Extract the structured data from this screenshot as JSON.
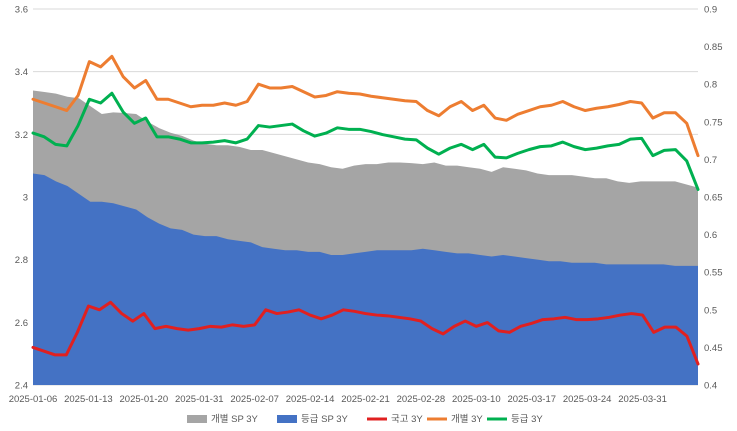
{
  "chart_data": {
    "type": "area",
    "y_left": {
      "min": 2.4,
      "max": 3.6,
      "ticks": [
        "2.4",
        "2.6",
        "2.8",
        "3",
        "3.2",
        "3.4",
        "3.6"
      ]
    },
    "y_right": {
      "min": 0.4,
      "max": 0.9,
      "ticks": [
        "0.4",
        "0.45",
        "0.5",
        "0.55",
        "0.6",
        "0.65",
        "0.7",
        "0.75",
        "0.8",
        "0.85",
        "0.9"
      ]
    },
    "x_tick_labels": [
      "2025-01-06",
      "2025-01-13",
      "2025-01-20",
      "2025-01-31",
      "2025-02-07",
      "2025-02-14",
      "2025-02-21",
      "2025-02-28",
      "2025-03-10",
      "2025-03-17",
      "2025-03-24",
      "2025-03-31"
    ],
    "x_tick_positions": [
      0,
      5,
      10,
      15,
      20,
      25,
      30,
      35,
      40,
      45,
      50,
      55
    ],
    "grid": true,
    "legend_position": "bottom",
    "series": [
      {
        "name": "개별 SP 3Y",
        "type": "area",
        "axis": "left",
        "color": "#a5a5a5",
        "values": [
          3.34,
          3.335,
          3.33,
          3.32,
          3.315,
          3.29,
          3.265,
          3.27,
          3.268,
          3.265,
          3.24,
          3.22,
          3.205,
          3.195,
          3.18,
          3.17,
          3.165,
          3.165,
          3.16,
          3.15,
          3.15,
          3.14,
          3.13,
          3.12,
          3.11,
          3.105,
          3.095,
          3.09,
          3.1,
          3.105,
          3.105,
          3.11,
          3.11,
          3.108,
          3.105,
          3.11,
          3.1,
          3.1,
          3.095,
          3.09,
          3.08,
          3.095,
          3.09,
          3.085,
          3.075,
          3.07,
          3.07,
          3.07,
          3.065,
          3.06,
          3.06,
          3.05,
          3.045,
          3.05,
          3.05,
          3.05,
          3.05,
          3.04,
          3.03
        ]
      },
      {
        "name": "등급 SP 3Y",
        "type": "area",
        "axis": "left",
        "color": "#4472c4",
        "values": [
          3.075,
          3.07,
          3.05,
          3.035,
          3.01,
          2.985,
          2.985,
          2.98,
          2.97,
          2.96,
          2.935,
          2.915,
          2.9,
          2.895,
          2.88,
          2.875,
          2.875,
          2.865,
          2.86,
          2.855,
          2.84,
          2.835,
          2.83,
          2.83,
          2.825,
          2.825,
          2.815,
          2.815,
          2.82,
          2.825,
          2.83,
          2.83,
          2.83,
          2.83,
          2.835,
          2.83,
          2.825,
          2.82,
          2.82,
          2.815,
          2.81,
          2.815,
          2.81,
          2.805,
          2.8,
          2.795,
          2.795,
          2.79,
          2.79,
          2.79,
          2.785,
          2.785,
          2.785,
          2.785,
          2.785,
          2.785,
          2.78,
          2.78,
          2.78
        ]
      },
      {
        "name": "국고 3Y",
        "type": "line",
        "axis": "right",
        "color": "#e02020",
        "values": [
          0.45,
          0.445,
          0.44,
          0.44,
          0.47,
          0.505,
          0.5,
          0.51,
          0.495,
          0.485,
          0.495,
          0.475,
          0.478,
          0.475,
          0.473,
          0.475,
          0.478,
          0.477,
          0.48,
          0.478,
          0.48,
          0.5,
          0.495,
          0.497,
          0.5,
          0.493,
          0.488,
          0.493,
          0.5,
          0.498,
          0.495,
          0.493,
          0.492,
          0.49,
          0.488,
          0.485,
          0.475,
          0.468,
          0.478,
          0.485,
          0.478,
          0.483,
          0.472,
          0.47,
          0.478,
          0.482,
          0.487,
          0.488,
          0.49,
          0.487,
          0.487,
          0.488,
          0.49,
          0.493,
          0.495,
          0.493,
          0.47,
          0.477,
          0.477,
          0.465,
          0.428
        ]
      },
      {
        "name": "개별 3Y",
        "type": "line",
        "axis": "right",
        "color": "#ed7d31",
        "values": [
          0.78,
          0.775,
          0.77,
          0.765,
          0.785,
          0.83,
          0.823,
          0.837,
          0.81,
          0.795,
          0.805,
          0.78,
          0.78,
          0.775,
          0.77,
          0.772,
          0.772,
          0.775,
          0.772,
          0.777,
          0.8,
          0.795,
          0.795,
          0.797,
          0.79,
          0.783,
          0.785,
          0.79,
          0.788,
          0.787,
          0.784,
          0.782,
          0.78,
          0.778,
          0.777,
          0.765,
          0.758,
          0.77,
          0.777,
          0.765,
          0.772,
          0.755,
          0.752,
          0.76,
          0.765,
          0.77,
          0.772,
          0.777,
          0.77,
          0.765,
          0.768,
          0.77,
          0.773,
          0.777,
          0.775,
          0.755,
          0.762,
          0.762,
          0.748,
          0.705
        ]
      },
      {
        "name": "등급 3Y",
        "type": "line",
        "axis": "right",
        "color": "#00b050",
        "values": [
          0.735,
          0.73,
          0.72,
          0.718,
          0.745,
          0.78,
          0.775,
          0.788,
          0.763,
          0.748,
          0.755,
          0.73,
          0.73,
          0.727,
          0.722,
          0.722,
          0.723,
          0.725,
          0.722,
          0.727,
          0.745,
          0.743,
          0.745,
          0.747,
          0.738,
          0.731,
          0.735,
          0.742,
          0.74,
          0.74,
          0.737,
          0.733,
          0.73,
          0.727,
          0.726,
          0.715,
          0.707,
          0.715,
          0.72,
          0.713,
          0.72,
          0.703,
          0.702,
          0.708,
          0.713,
          0.717,
          0.718,
          0.723,
          0.717,
          0.713,
          0.715,
          0.718,
          0.72,
          0.727,
          0.728,
          0.705,
          0.712,
          0.713,
          0.698,
          0.66
        ]
      }
    ]
  }
}
